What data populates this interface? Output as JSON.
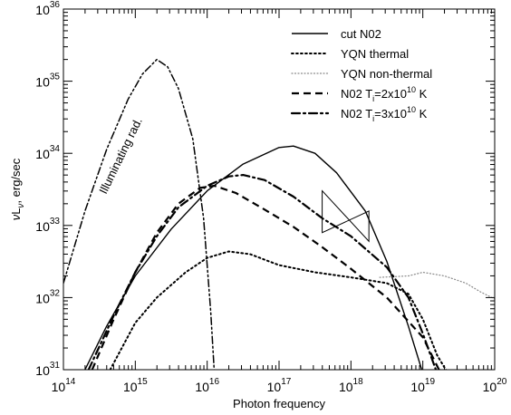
{
  "chart_data": {
    "type": "line",
    "title": "",
    "xlabel": "Photon frequency",
    "ylabel": "νL_ν, erg/sec",
    "x_scale": "log",
    "y_scale": "log",
    "xlim": [
      100000000000000.0,
      1e+20
    ],
    "ylim": [
      1e+31,
      1e+36
    ],
    "x_ticks": [
      {
        "base": "10",
        "exp": "14"
      },
      {
        "base": "10",
        "exp": "15"
      },
      {
        "base": "10",
        "exp": "16"
      },
      {
        "base": "10",
        "exp": "17"
      },
      {
        "base": "10",
        "exp": "18"
      },
      {
        "base": "10",
        "exp": "19"
      },
      {
        "base": "10",
        "exp": "20"
      }
    ],
    "y_ticks": [
      {
        "base": "10",
        "exp": "31"
      },
      {
        "base": "10",
        "exp": "32"
      },
      {
        "base": "10",
        "exp": "33"
      },
      {
        "base": "10",
        "exp": "34"
      },
      {
        "base": "10",
        "exp": "35"
      },
      {
        "base": "10",
        "exp": "36"
      }
    ],
    "legend_position": "top-right",
    "annotation": "Illuminating rad.",
    "series": [
      {
        "name": "cut N02",
        "style": "solid",
        "color": "#000000",
        "points": [
          [
            14.3,
            31.0
          ],
          [
            14.6,
            31.6
          ],
          [
            15.0,
            32.3
          ],
          [
            15.5,
            32.95
          ],
          [
            16.0,
            33.48
          ],
          [
            16.5,
            33.85
          ],
          [
            17.0,
            34.08
          ],
          [
            17.2,
            34.1
          ],
          [
            17.5,
            34.0
          ],
          [
            17.8,
            33.73
          ],
          [
            18.2,
            33.2
          ],
          [
            18.5,
            32.5
          ],
          [
            18.8,
            31.6
          ],
          [
            19.0,
            30.95
          ]
        ]
      },
      {
        "name": "YQN thermal",
        "style": "dotted",
        "color": "#000000",
        "points": [
          [
            14.65,
            31.0
          ],
          [
            15.0,
            31.65
          ],
          [
            15.3,
            32.0
          ],
          [
            15.7,
            32.35
          ],
          [
            16.0,
            32.55
          ],
          [
            16.3,
            32.64
          ],
          [
            16.6,
            32.6
          ],
          [
            17.0,
            32.45
          ],
          [
            17.5,
            32.35
          ],
          [
            18.0,
            32.28
          ],
          [
            18.5,
            32.2
          ],
          [
            18.8,
            32.05
          ],
          [
            19.0,
            31.7
          ],
          [
            19.2,
            31.2
          ],
          [
            19.35,
            30.95
          ]
        ]
      },
      {
        "name": "YQN non-thermal",
        "style": "dotted-gray",
        "color": "#888888",
        "points": [
          [
            18.4,
            32.28
          ],
          [
            18.8,
            32.3
          ],
          [
            19.0,
            32.35
          ],
          [
            19.3,
            32.3
          ],
          [
            19.6,
            32.2
          ],
          [
            19.8,
            32.08
          ],
          [
            20.0,
            31.98
          ]
        ]
      },
      {
        "name": "N02 T_i=2x10^10 K",
        "style": "dashed",
        "color": "#000000",
        "points": [
          [
            14.4,
            31.0
          ],
          [
            14.7,
            31.7
          ],
          [
            15.0,
            32.35
          ],
          [
            15.3,
            32.9
          ],
          [
            15.6,
            33.3
          ],
          [
            15.9,
            33.52
          ],
          [
            16.1,
            33.55
          ],
          [
            16.4,
            33.45
          ],
          [
            16.8,
            33.22
          ],
          [
            17.2,
            32.98
          ],
          [
            17.6,
            32.7
          ],
          [
            18.0,
            32.4
          ],
          [
            18.5,
            32.0
          ],
          [
            19.0,
            31.45
          ],
          [
            19.25,
            30.95
          ]
        ]
      },
      {
        "name": "N02 T_i=3x10^10 K",
        "style": "dashdot",
        "color": "#000000",
        "points": [
          [
            14.35,
            31.0
          ],
          [
            14.7,
            31.75
          ],
          [
            15.0,
            32.35
          ],
          [
            15.3,
            32.85
          ],
          [
            15.6,
            33.25
          ],
          [
            16.0,
            33.55
          ],
          [
            16.3,
            33.68
          ],
          [
            16.5,
            33.7
          ],
          [
            16.8,
            33.63
          ],
          [
            17.2,
            33.4
          ],
          [
            17.6,
            33.1
          ],
          [
            18.0,
            32.85
          ],
          [
            18.5,
            32.42
          ],
          [
            18.8,
            32.0
          ],
          [
            19.0,
            31.5
          ],
          [
            19.2,
            30.95
          ]
        ]
      },
      {
        "name": "Illuminating rad.",
        "style": "dashdotdot",
        "color": "#000000",
        "points": [
          [
            14.0,
            32.2
          ],
          [
            14.3,
            33.2
          ],
          [
            14.6,
            34.05
          ],
          [
            14.9,
            34.75
          ],
          [
            15.1,
            35.1
          ],
          [
            15.3,
            35.3
          ],
          [
            15.45,
            35.2
          ],
          [
            15.6,
            34.9
          ],
          [
            15.8,
            34.2
          ],
          [
            15.95,
            33.1
          ],
          [
            16.05,
            31.8
          ],
          [
            16.1,
            30.95
          ]
        ]
      }
    ],
    "bowtie": {
      "x_low": 17.6,
      "x_high": 18.25,
      "y_top_left": 33.48,
      "y_bot_left": 32.9,
      "y_top_right": 33.2,
      "y_bot_right": 32.78
    }
  }
}
